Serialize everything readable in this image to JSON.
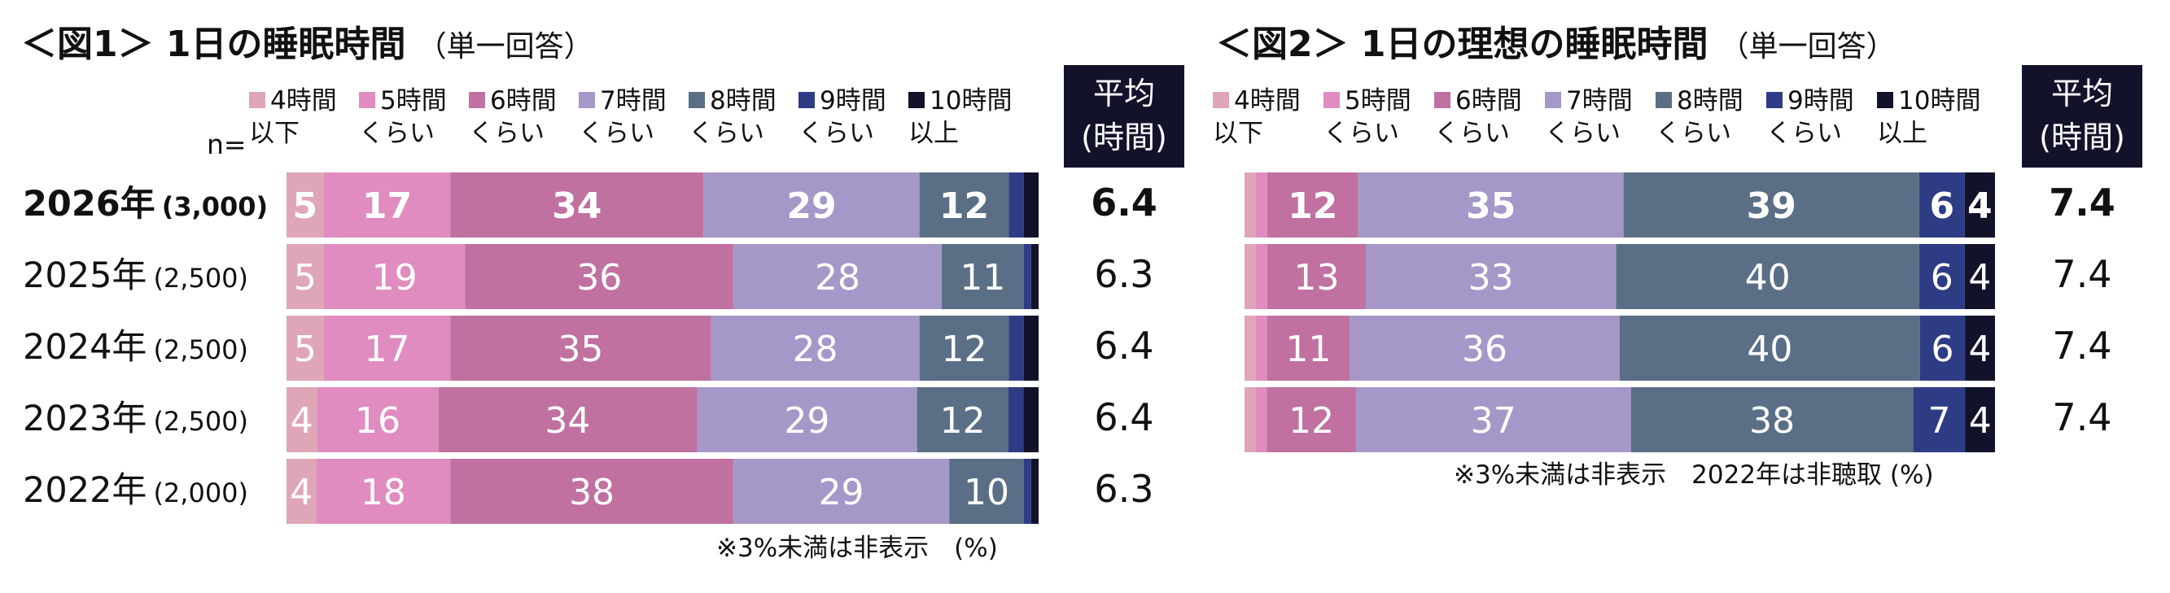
{
  "chart_data": [
    {
      "type": "bar",
      "orientation": "horizontal-stacked",
      "title": "＜図1＞ 1日の睡眠時間",
      "subtitle": "（単一回答）",
      "n_label": "n=",
      "avg_header": [
        "平均",
        "(時間)"
      ],
      "categories": [
        "2026年",
        "2025年",
        "2024年",
        "2023年",
        "2022年"
      ],
      "n_values": [
        "(3,000)",
        "(2,500)",
        "(2,500)",
        "(2,500)",
        "(2,000)"
      ],
      "highlight_index": 0,
      "series": [
        {
          "name": "4時間\n以下",
          "color": "#dfa6b8",
          "values": [
            5,
            5,
            5,
            4,
            4
          ]
        },
        {
          "name": "5時間\nくらい",
          "color": "#e08cc0",
          "values": [
            17,
            19,
            17,
            16,
            18
          ]
        },
        {
          "name": "6時間\nくらい",
          "color": "#c071a0",
          "values": [
            34,
            36,
            35,
            34,
            38
          ]
        },
        {
          "name": "7時間\nくらい",
          "color": "#a598c8",
          "values": [
            29,
            28,
            28,
            29,
            29
          ]
        },
        {
          "name": "8時間\nくらい",
          "color": "#5a6f86",
          "values": [
            12,
            11,
            12,
            12,
            10
          ]
        },
        {
          "name": "9時間\nくらい",
          "color": "#2e3c85",
          "values": [
            2,
            1,
            2,
            2,
            1
          ]
        },
        {
          "name": "10時間\n以上",
          "color": "#12132b",
          "values": [
            2,
            1,
            2,
            2,
            1
          ]
        }
      ],
      "averages": [
        "6.4",
        "6.3",
        "6.4",
        "6.4",
        "6.3"
      ],
      "note": "※3%未満は非表示　(%)",
      "label_threshold": 3
    },
    {
      "type": "bar",
      "orientation": "horizontal-stacked",
      "title": "＜図2＞ 1日の理想の睡眠時間",
      "subtitle": "（単一回答）",
      "avg_header": [
        "平均",
        "(時間)"
      ],
      "categories": [
        "2026年",
        "2025年",
        "2024年",
        "2023年"
      ],
      "highlight_index": 0,
      "series": [
        {
          "name": "4時間\n以下",
          "color": "#dfa6b8",
          "values": [
            1.5,
            1.5,
            1.5,
            1.5
          ]
        },
        {
          "name": "5時間\nくらい",
          "color": "#e08cc0",
          "values": [
            1.5,
            1.5,
            1.5,
            1.5
          ]
        },
        {
          "name": "6時間\nくらい",
          "color": "#c071a0",
          "values": [
            12,
            13,
            11,
            12
          ]
        },
        {
          "name": "7時間\nくらい",
          "color": "#a598c8",
          "values": [
            35,
            33,
            36,
            37
          ]
        },
        {
          "name": "8時間\nくらい",
          "color": "#5a6f86",
          "values": [
            39,
            40,
            40,
            38
          ]
        },
        {
          "name": "9時間\nくらい",
          "color": "#2e3c85",
          "values": [
            6,
            6,
            6,
            7
          ]
        },
        {
          "name": "10時間\n以上",
          "color": "#12132b",
          "values": [
            4,
            4,
            4,
            4
          ]
        }
      ],
      "averages": [
        "7.4",
        "7.4",
        "7.4",
        "7.4"
      ],
      "note": "※3%未満は非表示　2022年は非聴取 (%)",
      "label_threshold": 3
    }
  ]
}
